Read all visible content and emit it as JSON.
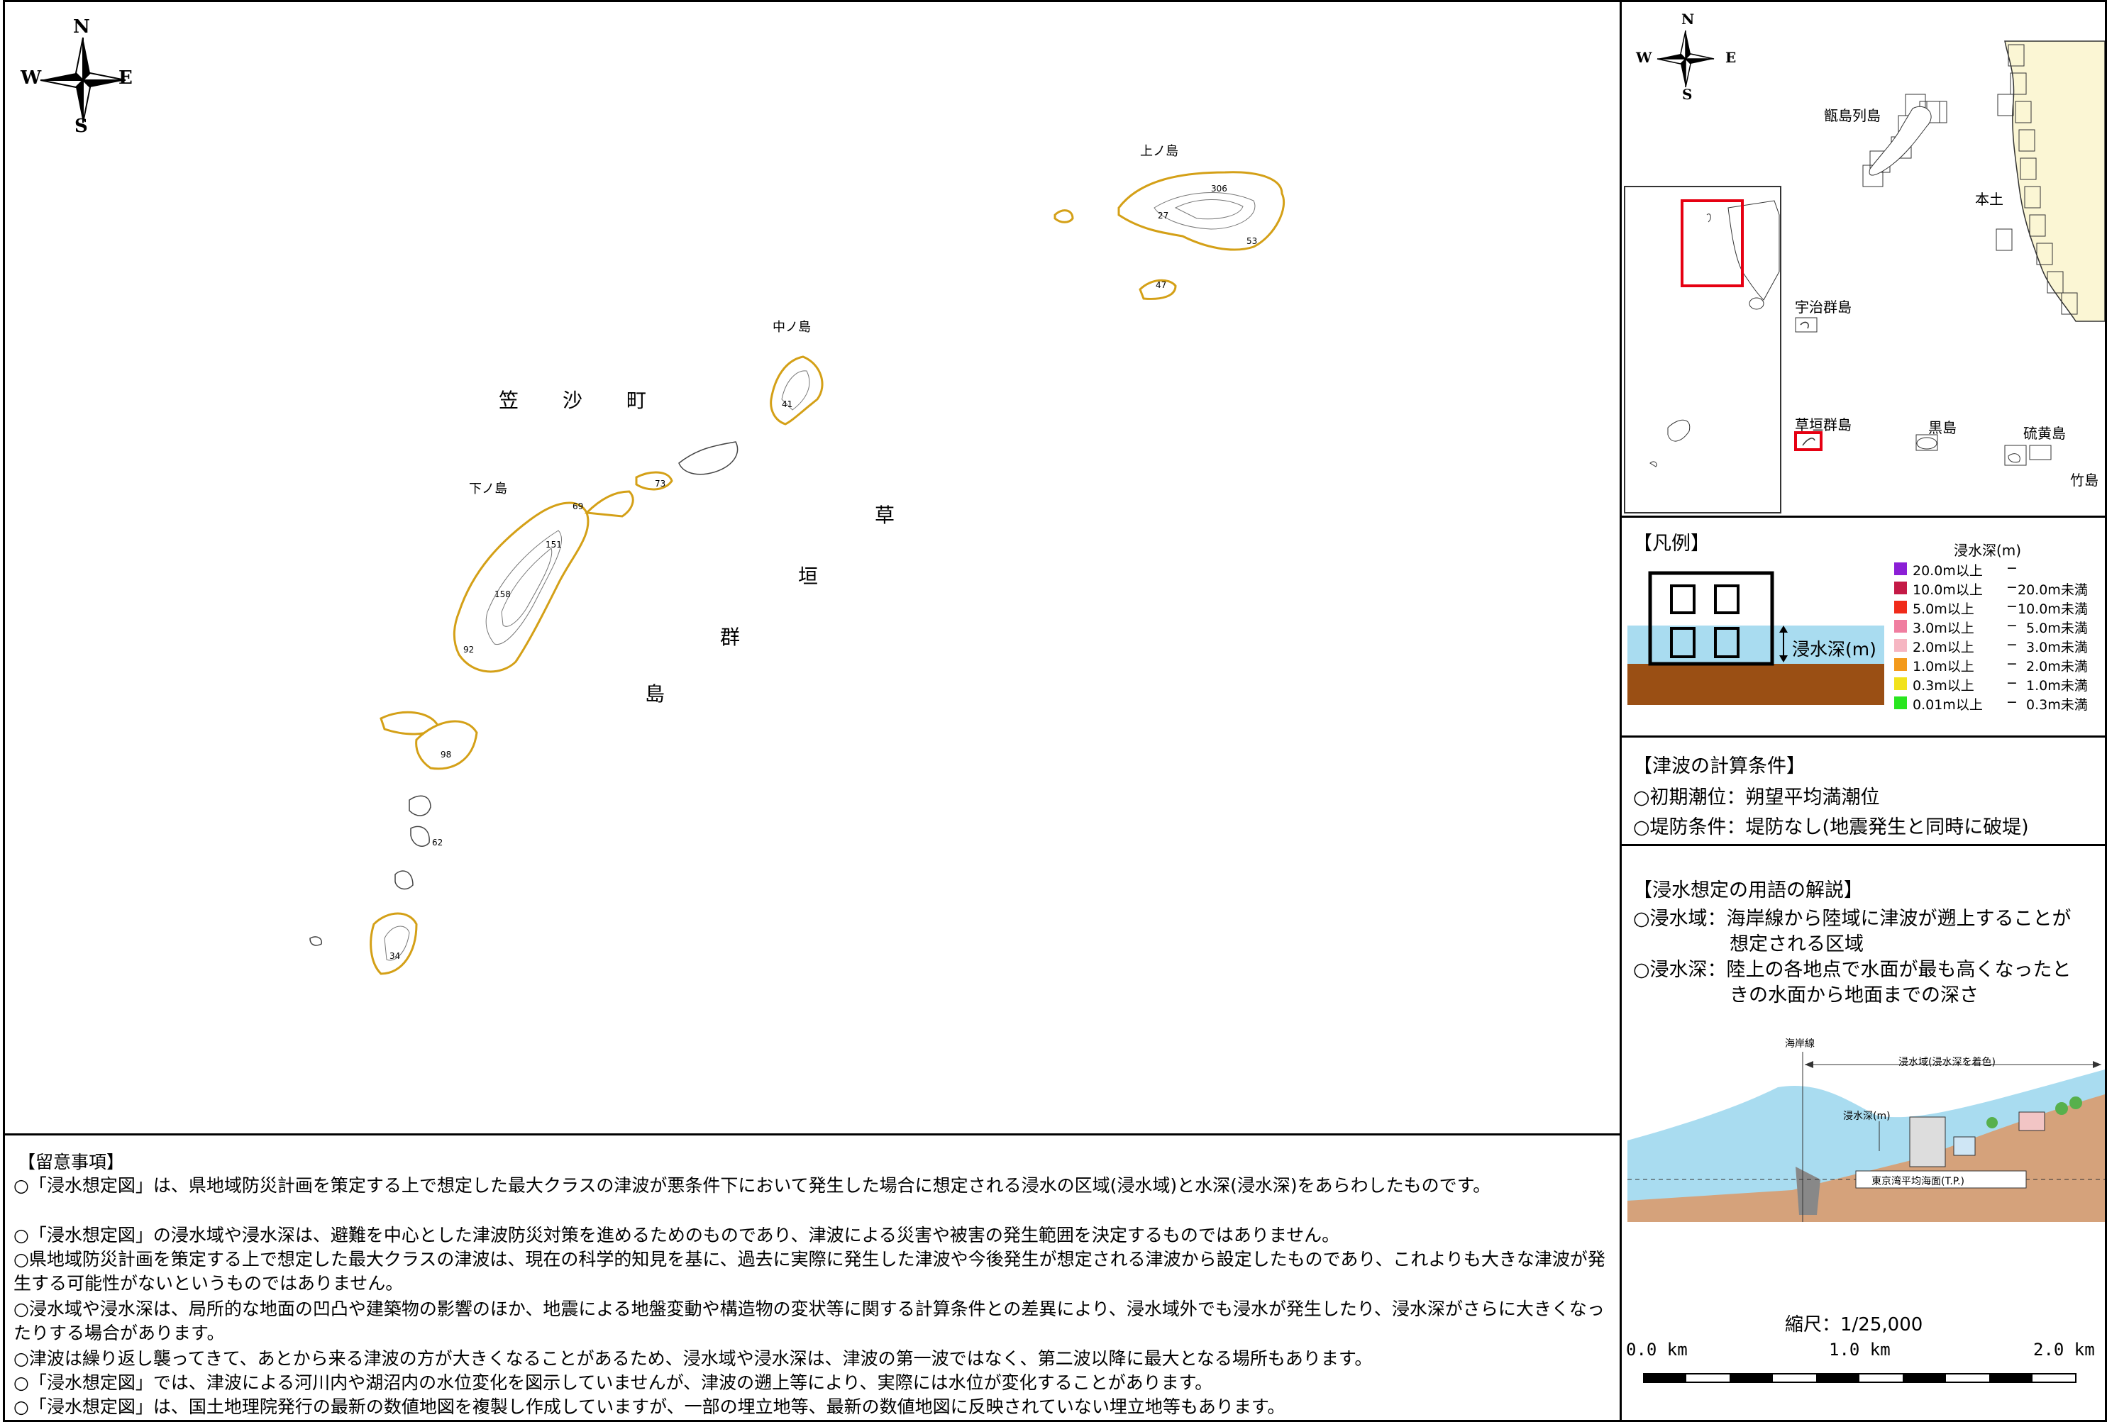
{
  "compass": {
    "n": "N",
    "s": "S",
    "e": "E",
    "w": "W"
  },
  "map": {
    "town_chars": [
      "笠",
      "沙",
      "町"
    ],
    "group_chars": [
      "草",
      "垣",
      "群",
      "島"
    ],
    "islands": {
      "kami": "上ノ島",
      "naka": "中ノ島",
      "shimo": "下ノ島"
    },
    "elevations": [
      "306",
      "27",
      "53",
      "47",
      "41",
      "73",
      "69",
      "151",
      "158",
      "92",
      "98",
      "62",
      "34"
    ]
  },
  "inset": {
    "koshiki": "甑島列島",
    "hondo": "本土",
    "uji": "宇治群島",
    "kusagaki": "草垣群島",
    "kuroshima": "黒島",
    "iou": "硫黄島",
    "take": "竹島"
  },
  "legend": {
    "title": "【凡例】",
    "depth_title": "浸水深(m)",
    "depth_label": "浸水深(m)",
    "colors": [
      "#8b1fd6",
      "#c41a46",
      "#f02b1a",
      "#f07ea0",
      "#f6b6c2",
      "#f39a1b",
      "#f2e21c",
      "#29e61f"
    ],
    "rows": [
      {
        "a": "20.0m以上",
        "dash": "−",
        "b": ""
      },
      {
        "a": "10.0m以上",
        "dash": "−",
        "b": "20.0m未満"
      },
      {
        "a": "5.0m以上",
        "dash": "−",
        "b": "10.0m未満"
      },
      {
        "a": "3.0m以上",
        "dash": "−",
        "b": "5.0m未満"
      },
      {
        "a": "2.0m以上",
        "dash": "−",
        "b": "3.0m未満"
      },
      {
        "a": "1.0m以上",
        "dash": "−",
        "b": "2.0m未満"
      },
      {
        "a": "0.3m以上",
        "dash": "−",
        "b": "1.0m未満"
      },
      {
        "a": "0.01m以上",
        "dash": "−",
        "b": "0.3m未満"
      }
    ]
  },
  "calc": {
    "title": "【津波の計算条件】",
    "line1": "○初期潮位：朔望平均満潮位",
    "line2": "○堤防条件：堤防なし(地震発生と同時に破堤)"
  },
  "terms": {
    "title": "【浸水想定の用語の解説】",
    "l1": "○浸水域：海岸線から陸域に津波が遡上することが",
    "l2": "想定される区域",
    "l3": "○浸水深：陸上の各地点で水面が最も高くなったと",
    "l4": "きの水面から地面までの深さ",
    "diagram": {
      "coast": "海岸線",
      "area": "浸水域(浸水深を着色)",
      "depth": "浸水深(m)",
      "tp": "東京湾平均海面(T.P.)"
    },
    "scale": {
      "title": "縮尺：1/25,000",
      "s0": "0.0 km",
      "s1": "1.0 km",
      "s2": "2.0 km"
    }
  },
  "notes": {
    "title": "【留意事項】",
    "items": [
      "○「浸水想定図」は、県地域防災計画を策定する上で想定した最大クラスの津波が悪条件下において発生した場合に想定される浸水の区域(浸水域)と水深(浸水深)をあらわしたものです。",
      "○「浸水想定図」の浸水域や浸水深は、避難を中心とした津波防災対策を進めるためのものであり、津波による災害や被害の発生範囲を決定するものではありません。",
      "○県地域防災計画を策定する上で想定した最大クラスの津波は、現在の科学的知見を基に、過去に実際に発生した津波や今後発生が想定される津波から設定したものであり、これよりも大きな津波が発生する可能性がないというものではありません。",
      "○浸水域や浸水深は、局所的な地面の凹凸や建築物の影響のほか、地震による地盤変動や構造物の変状等に関する計算条件との差異により、浸水域外でも浸水が発生したり、浸水深がさらに大きくなったりする場合があります。",
      "○津波は繰り返し襲ってきて、あとから来る津波の方が大きくなることがあるため、浸水域や浸水深は、津波の第一波ではなく、第二波以降に最大となる場所もあります。",
      "○「浸水想定図」では、津波による河川内や湖沼内の水位変化を図示していませんが、津波の遡上等により、実際には水位が変化することがあります。",
      "○「浸水想定図」は、国土地理院発行の最新の数値地図を複製し作成していますが、一部の埋立地等、最新の数値地図に反映されていない埋立地等もあります。"
    ]
  }
}
